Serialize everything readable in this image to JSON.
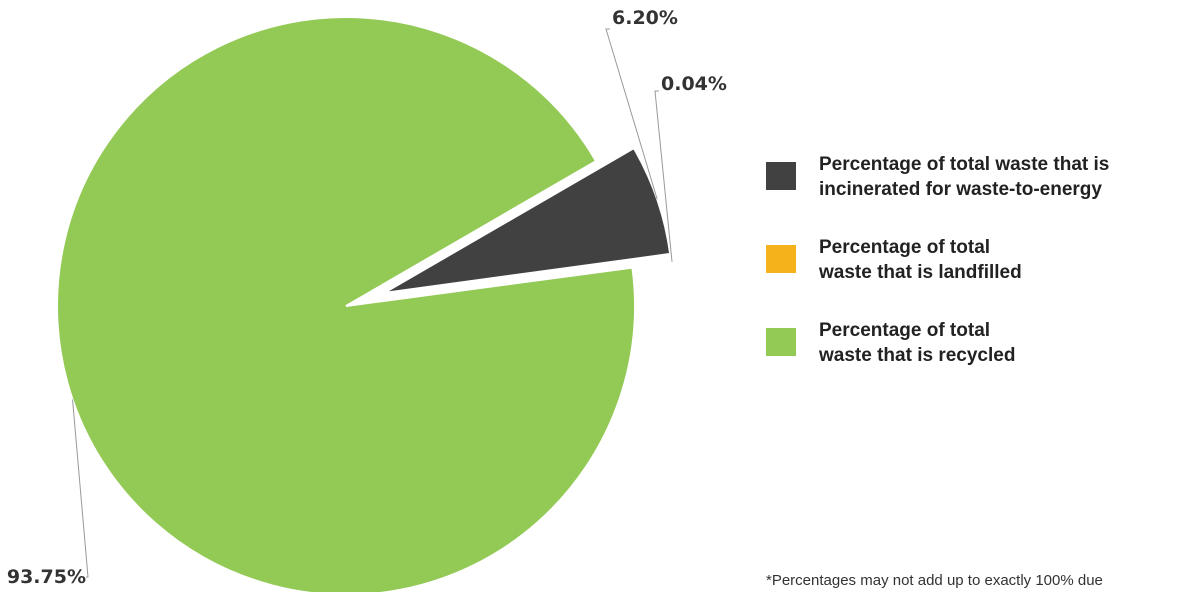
{
  "chart_data": {
    "type": "pie",
    "slices": [
      {
        "name": "Percentage of total waste that is\nincinerated for waste-to-energy",
        "value": 6.2,
        "label": "6.20%",
        "color": "#414141"
      },
      {
        "name": "Percentage of total\nwaste that is landfilled",
        "value": 0.04,
        "label": "0.04%",
        "color": "#f6b21b"
      },
      {
        "name": "Percentage of total\nwaste that is recycled",
        "value": 93.75,
        "label": "93.75%",
        "color": "#93c955"
      }
    ],
    "exploded": [
      "Percentage of total waste that is\nincinerated for waste-to-energy",
      "Percentage of total\nwaste that is landfilled"
    ],
    "legend_position": "right",
    "leader_line_color": "#999999"
  },
  "footnote": "*Percentages may not add up to exactly 100% due"
}
